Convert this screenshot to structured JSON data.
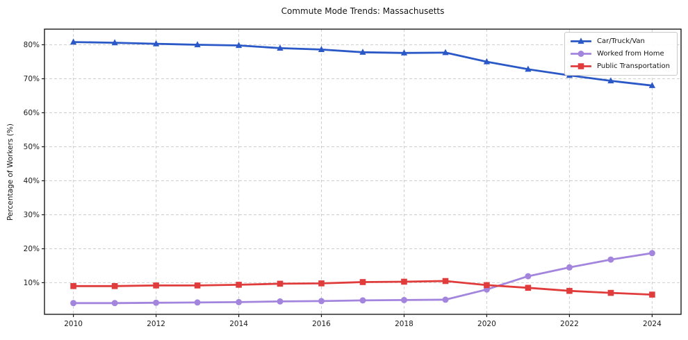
{
  "chart_data": {
    "type": "line",
    "title": "Commute Mode Trends: Massachusetts",
    "xlabel": "",
    "ylabel": "Percentage of Workers (%)",
    "x": [
      2010,
      2011,
      2012,
      2013,
      2014,
      2015,
      2016,
      2017,
      2018,
      2019,
      2020,
      2021,
      2022,
      2023,
      2024
    ],
    "series": [
      {
        "name": "Car/Truck/Van",
        "color": "#2a58c6",
        "marker": "triangle",
        "values": [
          80.8,
          80.6,
          80.3,
          80.0,
          79.8,
          79.0,
          78.6,
          77.8,
          77.6,
          77.7,
          75.0,
          72.8,
          71.0,
          69.4,
          68.0
        ]
      },
      {
        "name": "Worked from Home",
        "color": "#a385de",
        "marker": "circle",
        "values": [
          4.0,
          4.0,
          4.1,
          4.2,
          4.3,
          4.5,
          4.6,
          4.8,
          4.9,
          5.0,
          8.0,
          11.9,
          14.5,
          16.8,
          18.7
        ]
      },
      {
        "name": "Public Transportation",
        "color": "#e13c3c",
        "marker": "square",
        "values": [
          9.0,
          9.0,
          9.2,
          9.2,
          9.4,
          9.7,
          9.8,
          10.2,
          10.3,
          10.5,
          9.3,
          8.5,
          7.6,
          7.0,
          6.5
        ]
      }
    ],
    "x_ticks": [
      2010,
      2012,
      2014,
      2016,
      2018,
      2020,
      2022,
      2024
    ],
    "y_ticks": [
      10,
      20,
      30,
      40,
      50,
      60,
      70,
      80
    ],
    "y_tick_suffix": "%",
    "xlim": [
      2009.3,
      2024.7
    ],
    "ylim": [
      0.7,
      84.6
    ],
    "grid": true,
    "grid_style": "dashed",
    "legend_position": "upper right"
  },
  "styles": {
    "grid_color": "#cfcfcf",
    "frame_color": "#1a1a1a",
    "tick_text_color": "#1a1a1a",
    "background": "#ffffff"
  }
}
